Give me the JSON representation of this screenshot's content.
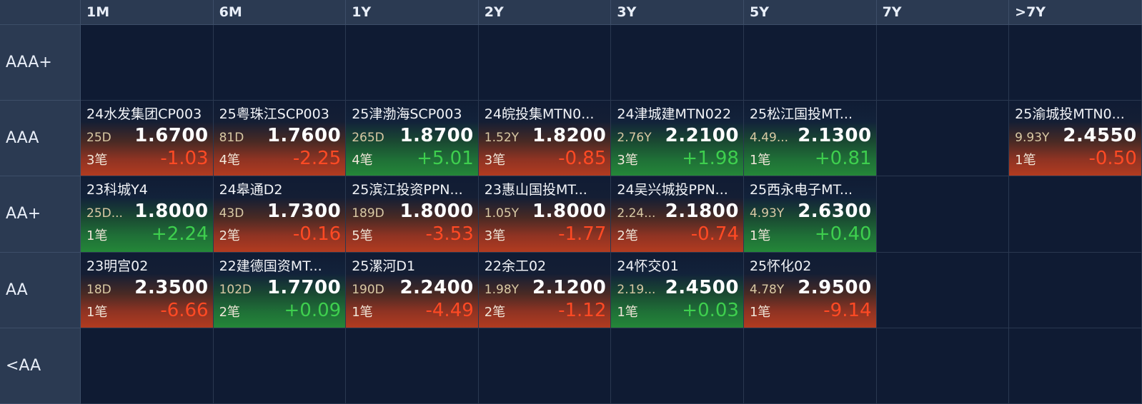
{
  "columns": [
    "1M",
    "6M",
    "1Y",
    "2Y",
    "3Y",
    "5Y",
    "7Y",
    ">7Y"
  ],
  "rows": [
    "AAA+",
    "AAA",
    "AA+",
    "AA",
    "<AA"
  ],
  "cells": {
    "AAA": [
      {
        "name": "24水发集团CP003",
        "term": "25D",
        "price": "1.6700",
        "count": "3笔",
        "change": "-1.03",
        "dir": "down"
      },
      {
        "name": "25粤珠江SCP003",
        "term": "81D",
        "price": "1.7600",
        "count": "4笔",
        "change": "-2.25",
        "dir": "down"
      },
      {
        "name": "25津渤海SCP003",
        "term": "265D",
        "price": "1.8700",
        "count": "4笔",
        "change": "+5.01",
        "dir": "up"
      },
      {
        "name": "24皖投集MTN0...",
        "term": "1.52Y",
        "price": "1.8200",
        "count": "3笔",
        "change": "-0.85",
        "dir": "down"
      },
      {
        "name": "24津城建MTN022",
        "term": "2.76Y",
        "price": "2.2100",
        "count": "3笔",
        "change": "+1.98",
        "dir": "up"
      },
      {
        "name": "25松江国投MT...",
        "term": "4.49...",
        "price": "2.1300",
        "count": "1笔",
        "change": "+0.81",
        "dir": "up"
      },
      null,
      {
        "name": "25渝城投MTN0...",
        "term": "9.93Y",
        "price": "2.4550",
        "count": "1笔",
        "change": "-0.50",
        "dir": "down"
      }
    ],
    "AA+": [
      {
        "name": "23科城Y4",
        "term": "25D...",
        "price": "1.8000",
        "count": "1笔",
        "change": "+2.24",
        "dir": "up"
      },
      {
        "name": "24皋通D2",
        "term": "43D",
        "price": "1.7300",
        "count": "2笔",
        "change": "-0.16",
        "dir": "down"
      },
      {
        "name": "25滨江投资PPN...",
        "term": "189D",
        "price": "1.8000",
        "count": "5笔",
        "change": "-3.53",
        "dir": "down"
      },
      {
        "name": "23惠山国投MT...",
        "term": "1.05Y",
        "price": "1.8000",
        "count": "3笔",
        "change": "-1.77",
        "dir": "down"
      },
      {
        "name": "24吴兴城投PPN...",
        "term": "2.24...",
        "price": "2.1800",
        "count": "2笔",
        "change": "-0.74",
        "dir": "down"
      },
      {
        "name": "25西永电子MT...",
        "term": "4.93Y",
        "price": "2.6300",
        "count": "1笔",
        "change": "+0.40",
        "dir": "up"
      },
      null,
      null
    ],
    "AA": [
      {
        "name": "23明宫02",
        "term": "18D",
        "price": "2.3500",
        "count": "1笔",
        "change": "-6.66",
        "dir": "down"
      },
      {
        "name": "22建德国资MT...",
        "term": "102D",
        "price": "1.7700",
        "count": "2笔",
        "change": "+0.09",
        "dir": "up"
      },
      {
        "name": "25漯河D1",
        "term": "190D",
        "price": "2.2400",
        "count": "1笔",
        "change": "-4.49",
        "dir": "down"
      },
      {
        "name": "22余工02",
        "term": "1.98Y",
        "price": "2.1200",
        "count": "2笔",
        "change": "-1.12",
        "dir": "down"
      },
      {
        "name": "24怀交01",
        "term": "2.19...",
        "price": "2.4500",
        "count": "1笔",
        "change": "+0.03",
        "dir": "up"
      },
      {
        "name": "25怀化02",
        "term": "4.78Y",
        "price": "2.9500",
        "count": "1笔",
        "change": "-9.14",
        "dir": "down"
      },
      null,
      null
    ]
  }
}
